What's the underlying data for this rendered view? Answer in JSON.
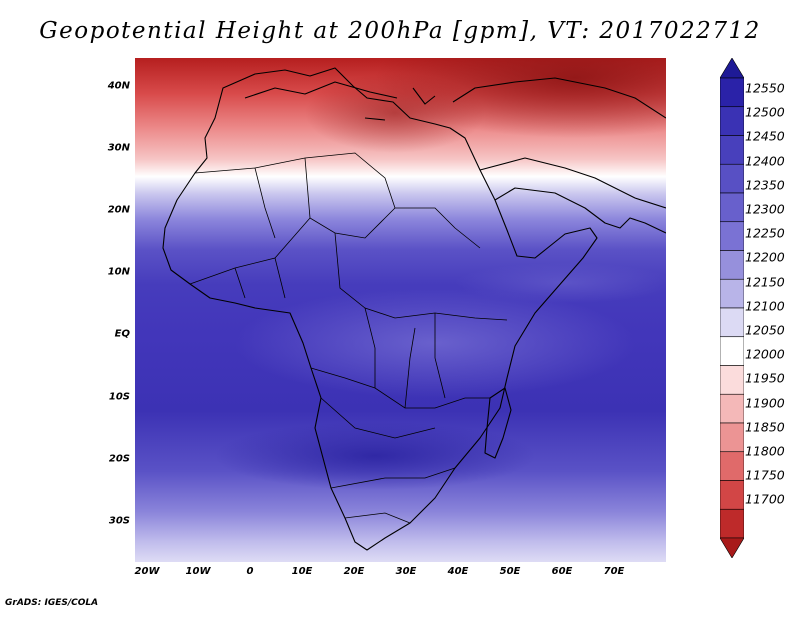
{
  "title": "Geopotential Height at 200hPa [gpm], VT: 2017022712",
  "footer": "GrADS: IGES/COLA",
  "lat_labels": [
    "40N",
    "30N",
    "20N",
    "10N",
    "EQ",
    "10S",
    "20S",
    "30S"
  ],
  "lon_labels": [
    "20W",
    "10W",
    "0",
    "10E",
    "20E",
    "30E",
    "40E",
    "50E",
    "60E",
    "70E"
  ],
  "colorbar": {
    "labels": [
      "12550",
      "12500",
      "12450",
      "12400",
      "12350",
      "12300",
      "12250",
      "12200",
      "12150",
      "12100",
      "12050",
      "12000",
      "11950",
      "11900",
      "11850",
      "11800",
      "11750",
      "11700"
    ],
    "colors": [
      "#1e1a96",
      "#2a22a8",
      "#3a32b4",
      "#4840bc",
      "#5850c4",
      "#6860cc",
      "#7a72d4",
      "#9690dc",
      "#b8b4e8",
      "#dcdaf4",
      "#ffffff",
      "#fbdcdc",
      "#f4b8b8",
      "#ec9494",
      "#e06a6a",
      "#d24646",
      "#be2a2a",
      "#a81a1a"
    ]
  },
  "chart_data": {
    "type": "heatmap",
    "title": "Geopotential Height at 200hPa [gpm], VT: 2017022712",
    "units": "gpm",
    "region": "Africa",
    "x_ticks": [
      "20W",
      "10W",
      "0",
      "10E",
      "20E",
      "30E",
      "40E",
      "50E",
      "60E",
      "70E"
    ],
    "y_ticks": [
      "40N",
      "30N",
      "20N",
      "10N",
      "EQ",
      "10S",
      "20S",
      "30S"
    ],
    "contour_levels": [
      11700,
      11750,
      11800,
      11850,
      11900,
      11950,
      12000,
      12050,
      12100,
      12150,
      12200,
      12250,
      12300,
      12350,
      12400,
      12450,
      12500,
      12550
    ]
  }
}
